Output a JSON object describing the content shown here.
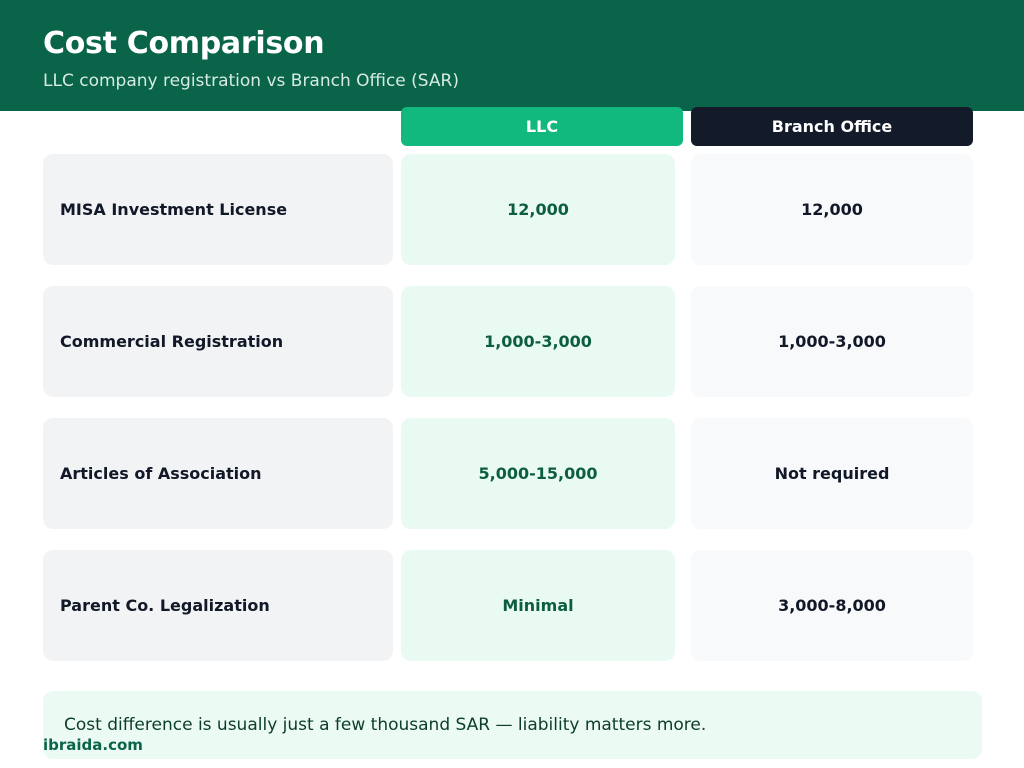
{
  "header": {
    "title": "Cost Comparison",
    "subtitle": "LLC company registration vs Branch Office (SAR)"
  },
  "columns": {
    "llc": "LLC",
    "branch": "Branch Office"
  },
  "rows": [
    {
      "label": "MISA Investment License",
      "llc": "12,000",
      "branch": "12,000"
    },
    {
      "label": "Commercial Registration",
      "llc": "1,000-3,000",
      "branch": "1,000-3,000"
    },
    {
      "label": "Articles of Association",
      "llc": "5,000-15,000",
      "branch": "Not required"
    },
    {
      "label": "Parent Co. Legalization",
      "llc": "Minimal",
      "branch": "3,000-8,000"
    }
  ],
  "note": "Cost difference is usually just a few thousand SAR — liability matters more.",
  "brand": "ibraida.com",
  "colors": {
    "header_bg": "#0a6449",
    "llc_accent": "#12b97f",
    "branch_accent": "#131a2a",
    "llc_cell_bg": "#e9faf2",
    "llc_text": "#0d5e40"
  }
}
